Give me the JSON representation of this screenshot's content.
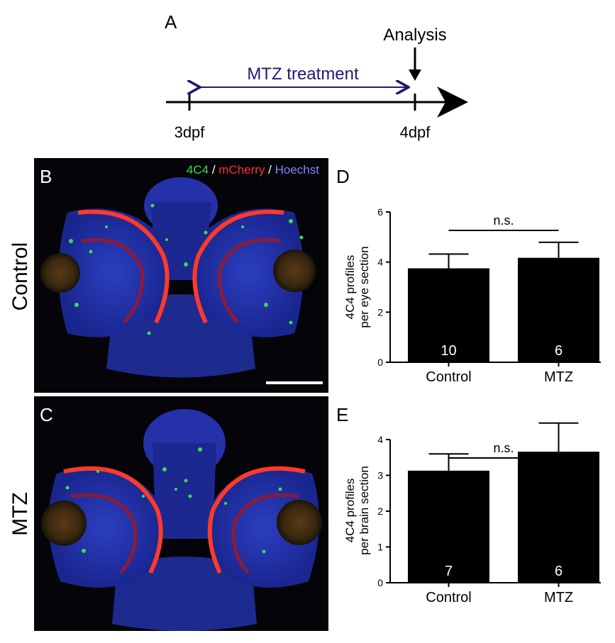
{
  "panel_a": {
    "letter": "A",
    "analysis_label": "Analysis",
    "treatment_label": "MTZ treatment",
    "start_label": "3dpf",
    "end_label": "4dpf",
    "treatment_color": "#1f1a6e"
  },
  "micrographs": [
    {
      "letter": "B",
      "row_label": "Control",
      "has_legend": true,
      "has_scale_bar": true
    },
    {
      "letter": "C",
      "row_label": "MTZ",
      "has_legend": false,
      "has_scale_bar": false
    }
  ],
  "stain_legend": {
    "items": [
      {
        "text": "4C4",
        "color": "#3ddc4a"
      },
      {
        "text": " / ",
        "color": "#ffffff"
      },
      {
        "text": "mCherry",
        "color": "#ff3030"
      },
      {
        "text": " / ",
        "color": "#ffffff"
      },
      {
        "text": "Hoechst",
        "color": "#7f86ff"
      }
    ]
  },
  "chart_data": [
    {
      "type": "bar",
      "letter": "D",
      "categories": [
        "Control",
        "MTZ"
      ],
      "values": [
        3.75,
        4.17
      ],
      "errors": [
        0.57,
        0.62
      ],
      "n_labels": [
        "10",
        "6"
      ],
      "ylabel_lines": [
        "4C4 profiles",
        "per eye section"
      ],
      "ylim": [
        0,
        6
      ],
      "yticks": [
        0,
        2,
        4,
        6
      ],
      "significance": "n.s.",
      "bar_color": "#000000"
    },
    {
      "type": "bar",
      "letter": "E",
      "categories": [
        "Control",
        "MTZ"
      ],
      "values": [
        3.13,
        3.66
      ],
      "errors": [
        0.47,
        0.8
      ],
      "n_labels": [
        "7",
        "6"
      ],
      "ylabel_lines": [
        "4C4 profiles",
        "per brain section"
      ],
      "ylim": [
        0,
        4
      ],
      "yticks": [
        0,
        1,
        2,
        3,
        4
      ],
      "significance": "n.s.",
      "bar_color": "#000000"
    }
  ]
}
